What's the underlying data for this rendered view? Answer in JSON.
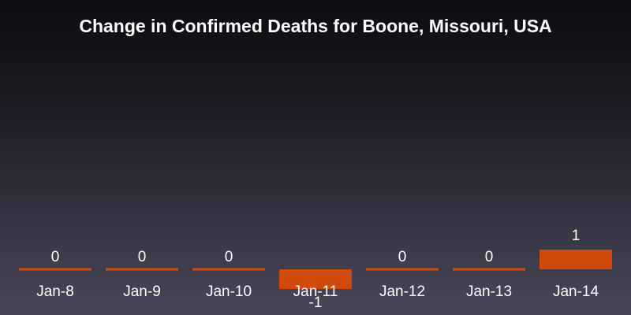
{
  "chart_data": {
    "type": "bar",
    "title": "Change in Confirmed Deaths for Boone, Missouri, USA",
    "categories": [
      "Jan-8",
      "Jan-9",
      "Jan-10",
      "Jan-11",
      "Jan-12",
      "Jan-13",
      "Jan-14"
    ],
    "values": [
      0,
      0,
      0,
      -1,
      0,
      0,
      1
    ],
    "data_labels": [
      "0",
      "0",
      "0",
      "-1",
      "0",
      "0",
      "1"
    ],
    "xlabel": "",
    "ylabel": "",
    "ylim": [
      -1,
      1
    ],
    "grid": false,
    "legend": "none",
    "bar_color": "#d14a0c",
    "background_top": "#0d0d10",
    "background_bottom": "#494657",
    "text_color": "#ffffff"
  }
}
